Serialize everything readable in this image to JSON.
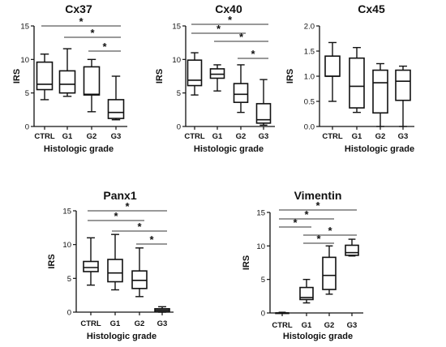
{
  "chart_data": [
    {
      "type": "boxplot",
      "title": "Cx37",
      "ylabel": "IRS",
      "xlabel": "Histologic grade",
      "ylim": [
        0,
        15
      ],
      "yticks": [
        0,
        5,
        10,
        15
      ],
      "ytick_labels": [
        "0",
        "5",
        "10",
        "15"
      ],
      "categories": [
        "CTRL",
        "G1",
        "G2",
        "G3"
      ],
      "boxes": [
        {
          "min": 4.0,
          "q1": 5.5,
          "median": 6.3,
          "q3": 9.6,
          "max": 10.8
        },
        {
          "min": 4.5,
          "q1": 5.0,
          "median": 6.3,
          "q3": 8.3,
          "max": 11.6
        },
        {
          "min": 2.2,
          "q1": 4.7,
          "median": 4.8,
          "q3": 8.9,
          "max": 10.0
        },
        {
          "min": 1.0,
          "q1": 1.2,
          "median": 2.1,
          "q3": 4.0,
          "max": 7.5
        }
      ],
      "significance": [
        {
          "from": "CTRL",
          "to": "G3",
          "label": "*"
        },
        {
          "from": "G1",
          "to": "G3",
          "label": "*"
        },
        {
          "from": "G2",
          "to": "G3",
          "label": "*"
        }
      ]
    },
    {
      "type": "boxplot",
      "title": "Cx40",
      "ylabel": "IRS",
      "xlabel": "Histologic grade",
      "ylim": [
        0,
        15
      ],
      "yticks": [
        0,
        5,
        10,
        15
      ],
      "ytick_labels": [
        "0",
        "5",
        "10",
        "15"
      ],
      "categories": [
        "CTRL",
        "G1",
        "G2",
        "G3"
      ],
      "boxes": [
        {
          "min": 4.7,
          "q1": 6.1,
          "median": 6.9,
          "q3": 9.9,
          "max": 11.0
        },
        {
          "min": 5.3,
          "q1": 7.2,
          "median": 7.8,
          "q3": 8.6,
          "max": 9.2
        },
        {
          "min": 2.1,
          "q1": 3.6,
          "median": 4.8,
          "q3": 6.4,
          "max": 9.2
        },
        {
          "min": 0.2,
          "q1": 0.5,
          "median": 1.0,
          "q3": 3.4,
          "max": 7.0
        }
      ],
      "significance": [
        {
          "from": "CTRL",
          "to": "G3",
          "label": "*"
        },
        {
          "from": "CTRL",
          "to": "G2",
          "label": "*"
        },
        {
          "from": "G1",
          "to": "G3",
          "label": "*"
        },
        {
          "from": "G2",
          "to": "G3",
          "label": "*"
        }
      ]
    },
    {
      "type": "boxplot",
      "title": "Cx45",
      "ylabel": "IRS",
      "xlabel": "Histologic grade",
      "ylim": [
        0,
        2.0
      ],
      "yticks": [
        0,
        0.5,
        1.0,
        1.5,
        2.0
      ],
      "ytick_labels": [
        "0.0",
        "0.5",
        "1.0",
        "1.5",
        "2.0"
      ],
      "categories": [
        "CTRL",
        "G1",
        "G2",
        "G3"
      ],
      "boxes": [
        {
          "min": 0.5,
          "q1": 1.0,
          "median": 1.0,
          "q3": 1.4,
          "max": 1.67
        },
        {
          "min": 0.28,
          "q1": 0.37,
          "median": 0.8,
          "q3": 1.36,
          "max": 1.57
        },
        {
          "min": 0.0,
          "q1": 0.27,
          "median": 0.87,
          "q3": 1.12,
          "max": 1.25
        },
        {
          "min": 0.0,
          "q1": 0.52,
          "median": 0.9,
          "q3": 1.12,
          "max": 1.2
        }
      ],
      "significance": []
    },
    {
      "type": "boxplot",
      "title": "Panx1",
      "ylabel": "IRS",
      "xlabel": "Histologic grade",
      "ylim": [
        0,
        15
      ],
      "yticks": [
        0,
        5,
        10,
        15
      ],
      "ytick_labels": [
        "0",
        "5",
        "10",
        "15"
      ],
      "categories": [
        "CTRL",
        "G1",
        "G2",
        "G3"
      ],
      "boxes": [
        {
          "min": 4.0,
          "q1": 6.0,
          "median": 6.6,
          "q3": 7.5,
          "max": 11.0
        },
        {
          "min": 3.3,
          "q1": 4.5,
          "median": 5.8,
          "q3": 7.8,
          "max": 11.5
        },
        {
          "min": 2.3,
          "q1": 3.5,
          "median": 4.7,
          "q3": 6.1,
          "max": 9.5
        },
        {
          "min": 0.0,
          "q1": 0.1,
          "median": 0.3,
          "q3": 0.5,
          "max": 0.8
        }
      ],
      "significance": [
        {
          "from": "CTRL",
          "to": "G3",
          "label": "*"
        },
        {
          "from": "CTRL",
          "to": "G2",
          "label": "*"
        },
        {
          "from": "G1",
          "to": "G3",
          "label": "*"
        },
        {
          "from": "G2",
          "to": "G3",
          "label": "*"
        }
      ]
    },
    {
      "type": "boxplot",
      "title": "Vimentin",
      "ylabel": "IRS",
      "xlabel": "Histologic grade",
      "ylim": [
        0,
        15
      ],
      "yticks": [
        0,
        5,
        10,
        15
      ],
      "ytick_labels": [
        "0",
        "5",
        "10",
        "15"
      ],
      "categories": [
        "CTRL",
        "G1",
        "G2",
        "G3"
      ],
      "boxes": [
        {
          "min": 0.0,
          "q1": 0.0,
          "median": 0.0,
          "q3": 0.0,
          "max": 0.1
        },
        {
          "min": 1.5,
          "q1": 2.0,
          "median": 2.3,
          "q3": 3.8,
          "max": 5.0
        },
        {
          "min": 2.8,
          "q1": 3.5,
          "median": 5.6,
          "q3": 8.3,
          "max": 10.0
        },
        {
          "min": 8.5,
          "q1": 8.6,
          "median": 9.0,
          "q3": 10.1,
          "max": 11.0
        }
      ],
      "significance": [
        {
          "from": "CTRL",
          "to": "G3",
          "label": "*"
        },
        {
          "from": "CTRL",
          "to": "G2",
          "label": "*"
        },
        {
          "from": "CTRL",
          "to": "G1",
          "label": "*"
        },
        {
          "from": "G1",
          "to": "G3",
          "label": "*"
        },
        {
          "from": "G1",
          "to": "G2",
          "label": "*"
        }
      ]
    }
  ]
}
